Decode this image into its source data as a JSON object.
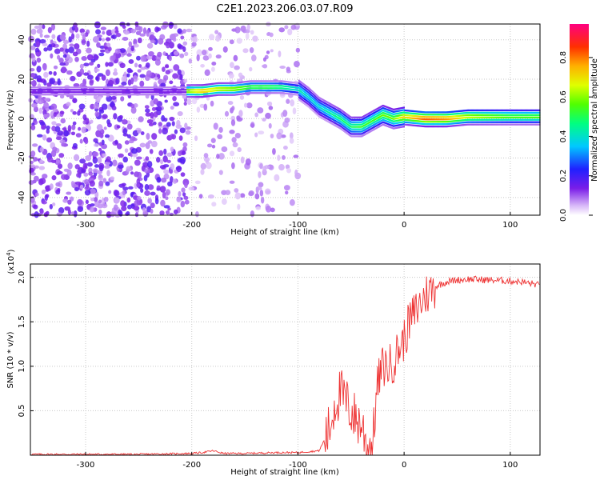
{
  "title": "C2E1.2023.206.03.07.R09",
  "chart_data": [
    {
      "type": "heatmap",
      "xlabel": "Height of straight line (km)",
      "ylabel": "Frequency (Hz)",
      "xlim": [
        -352,
        128
      ],
      "ylim": [
        -49,
        48
      ],
      "xticks": [
        -300,
        -200,
        -100,
        0,
        100
      ],
      "yticks": [
        -40,
        -20,
        0,
        20,
        40
      ],
      "grid": true,
      "colorbar": {
        "label": "Normalized spectral amplitude",
        "range": [
          0,
          0.97
        ],
        "ticks": [
          0.0,
          0.2,
          0.4,
          0.6,
          0.8
        ],
        "tick_labels": [
          "0.0",
          "0.2",
          "0.4",
          "0.6",
          "0.8"
        ]
      },
      "ridge": [
        {
          "x": -205,
          "f": 14,
          "a": 0.7
        },
        {
          "x": -190,
          "f": 14,
          "a": 0.85
        },
        {
          "x": -175,
          "f": 15,
          "a": 0.75
        },
        {
          "x": -160,
          "f": 15,
          "a": 0.7
        },
        {
          "x": -145,
          "f": 16,
          "a": 0.6
        },
        {
          "x": -130,
          "f": 16,
          "a": 0.6
        },
        {
          "x": -115,
          "f": 16,
          "a": 0.55
        },
        {
          "x": -100,
          "f": 15,
          "a": 0.45
        },
        {
          "x": -90,
          "f": 11,
          "a": 0.4
        },
        {
          "x": -80,
          "f": 6,
          "a": 0.4
        },
        {
          "x": -70,
          "f": 3,
          "a": 0.45
        },
        {
          "x": -60,
          "f": 0,
          "a": 0.5
        },
        {
          "x": -50,
          "f": -4,
          "a": 0.5
        },
        {
          "x": -40,
          "f": -4,
          "a": 0.55
        },
        {
          "x": -30,
          "f": -1,
          "a": 0.55
        },
        {
          "x": -20,
          "f": 2,
          "a": 0.6
        },
        {
          "x": -10,
          "f": 0,
          "a": 0.6
        },
        {
          "x": 0,
          "f": 1,
          "a": 0.75
        },
        {
          "x": 20,
          "f": 0,
          "a": 0.9
        },
        {
          "x": 40,
          "f": 0,
          "a": 0.85
        },
        {
          "x": 60,
          "f": 1,
          "a": 0.7
        },
        {
          "x": 80,
          "f": 1,
          "a": 0.65
        },
        {
          "x": 100,
          "f": 1,
          "a": 0.6
        },
        {
          "x": 125,
          "f": 1,
          "a": 0.6
        }
      ]
    },
    {
      "type": "line",
      "xlabel": "Height of straight line (km)",
      "ylabel": "SNR (10 * v/v)",
      "yunit": "(x10",
      "yunit_exp": "4",
      "yunit_close": ")",
      "xlim": [
        -352,
        128
      ],
      "ylim": [
        0,
        2.15
      ],
      "xticks": [
        -300,
        -200,
        -100,
        0,
        100
      ],
      "yticks": [
        0.5,
        1.0,
        1.5,
        2.0
      ],
      "ytick_labels": [
        "0.5",
        "1.0",
        "1.5",
        "2.0"
      ],
      "grid": true,
      "color": "#ee3333",
      "series": [
        {
          "x": [
            -352,
            -300,
            -250,
            -200,
            -190,
            -180,
            -170,
            -150,
            -120,
            -100,
            -80,
            -70,
            -65,
            -60,
            -55,
            -50,
            -45,
            -40,
            -35,
            -30,
            -25,
            -20,
            -15,
            -10,
            -5,
            0,
            5,
            10,
            15,
            20,
            25,
            30,
            40,
            50,
            60,
            80,
            100,
            110,
            120,
            125,
            128
          ],
          "y": [
            0.01,
            0.01,
            0.01,
            0.02,
            0.03,
            0.05,
            0.02,
            0.02,
            0.03,
            0.03,
            0.05,
            0.3,
            0.6,
            0.7,
            0.6,
            0.5,
            0.4,
            0.35,
            0.1,
            0.1,
            0.8,
            1.0,
            1.0,
            1.05,
            1.2,
            1.3,
            1.5,
            1.6,
            1.7,
            1.8,
            1.85,
            1.9,
            1.95,
            1.97,
            1.98,
            1.97,
            1.96,
            1.95,
            1.93,
            1.92,
            1.9
          ]
        }
      ]
    }
  ]
}
